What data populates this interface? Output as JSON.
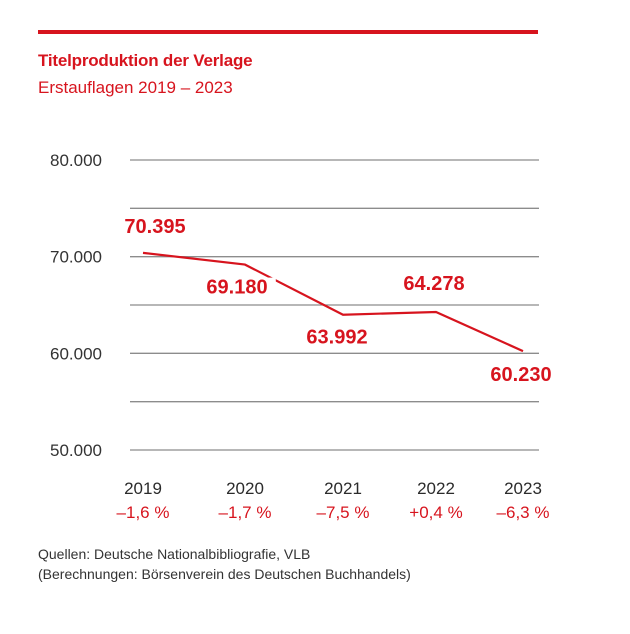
{
  "header": {
    "title": "Titelproduktion der Verlage",
    "subtitle": "Erstauflagen 2019 – 2023"
  },
  "colors": {
    "accent": "#d7141e",
    "grid": "#8c8c8c",
    "text": "#333333"
  },
  "chart_data": {
    "type": "line",
    "title": "Titelproduktion der Verlage",
    "subtitle": "Erstauflagen 2019 – 2023",
    "xlabel": "",
    "ylabel": "",
    "categories": [
      "2019",
      "2020",
      "2021",
      "2022",
      "2023"
    ],
    "series": [
      {
        "name": "Erstauflagen",
        "values": [
          70395,
          69180,
          63992,
          64278,
          60230
        ],
        "labels": [
          "70.395",
          "69.180",
          "63.992",
          "64.278",
          "60.230"
        ]
      }
    ],
    "changes": [
      "–1,6 %",
      "–1,7 %",
      "–7,5 %",
      "+0,4 %",
      "–6,3 %"
    ],
    "ylim": [
      50000,
      80000
    ],
    "yticks": [
      50000,
      60000,
      70000,
      80000
    ],
    "ytick_labels": [
      "50.000",
      "60.000",
      "70.000",
      "80.000"
    ],
    "gridlines": [
      50000,
      55000,
      60000,
      65000,
      70000,
      75000,
      80000
    ],
    "grid": true,
    "legend": "none"
  },
  "footer": {
    "source_line1": "Quellen: Deutsche Nationalbibliografie, VLB",
    "source_line2": "(Berechnungen: Börsenverein des Deutschen Buchhandels)"
  }
}
